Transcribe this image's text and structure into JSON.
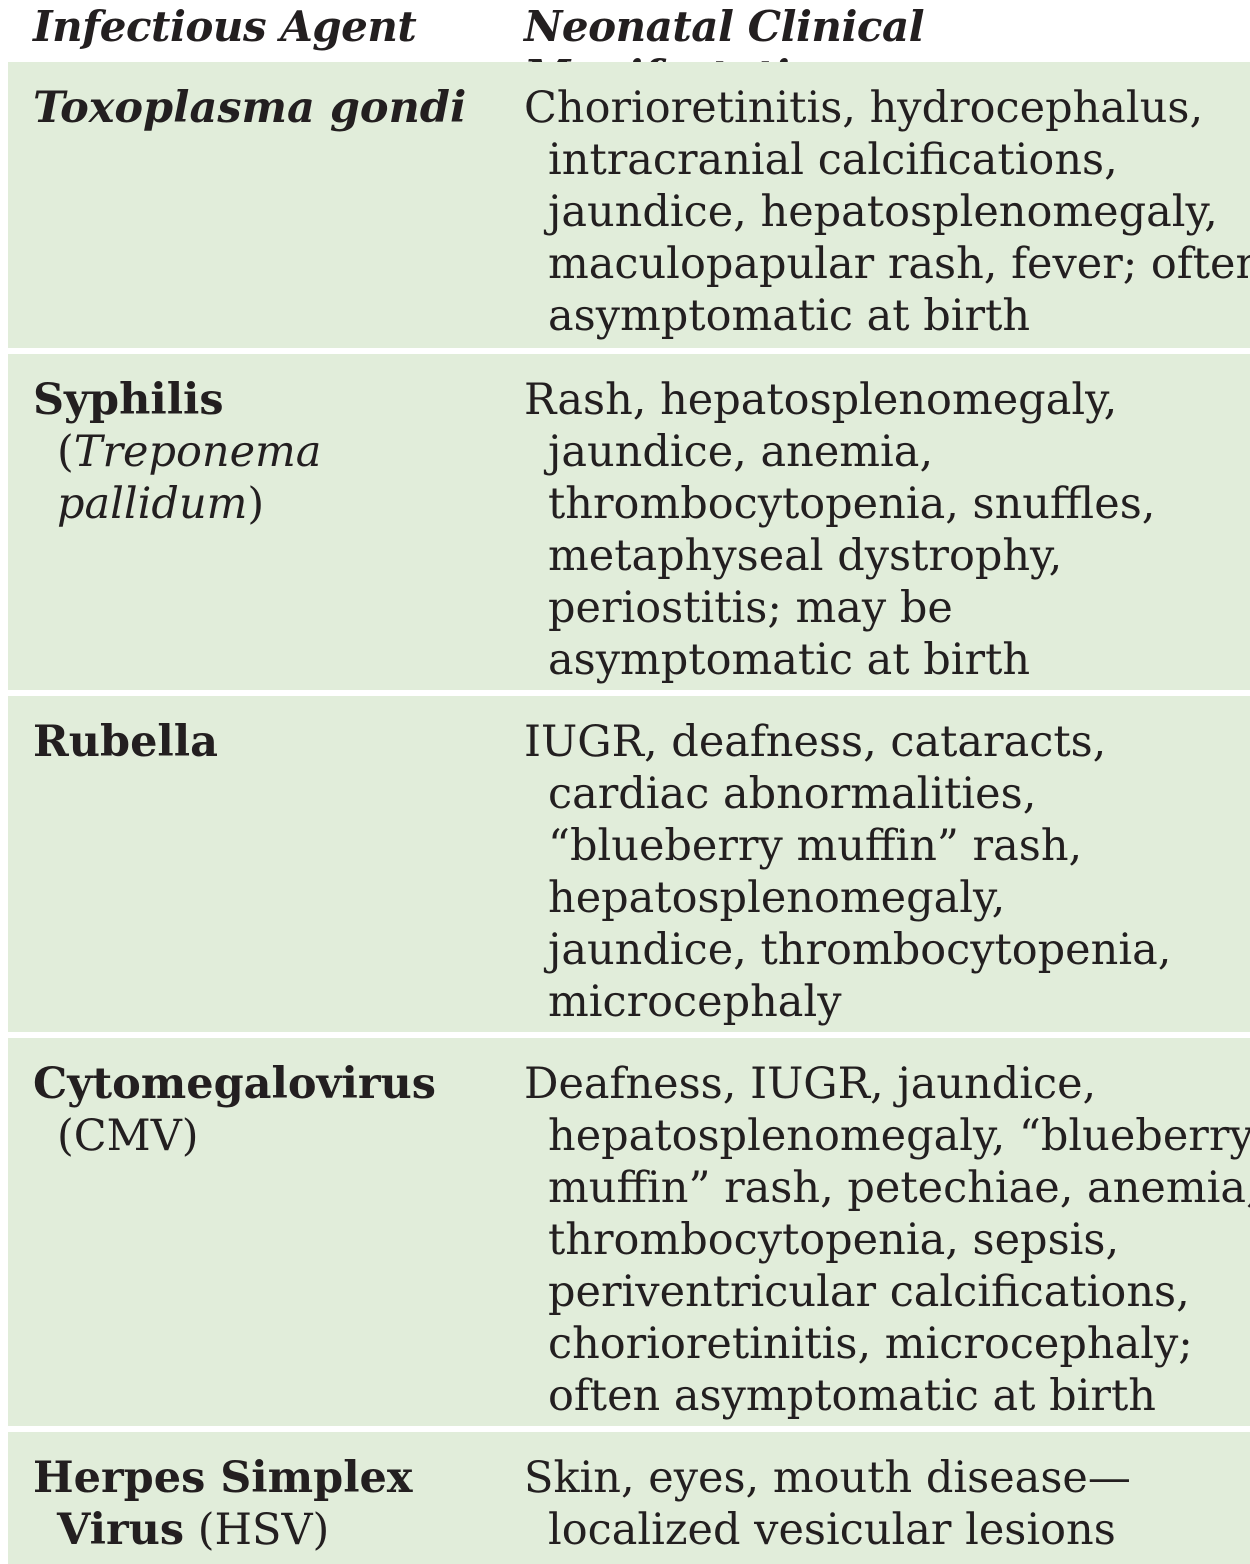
{
  "header": {
    "agent": "Infectious Agent",
    "manifestations": "Neonatal Clinical Manifestations"
  },
  "rows": [
    {
      "agent_name": "Toxoplasma gondi",
      "manifestation_lines": [
        "Chorioretinitis, hydrocephalus,",
        "intracranial calcifications,",
        "jaundice, hepatosplenomegaly,",
        "maculopapular rash, fever; often",
        "asymptomatic at birth"
      ]
    },
    {
      "agent_name": "Syphilis",
      "agent_sub_open": "(",
      "agent_sub_italic_1": "Treponema",
      "agent_sub_italic_2": "pallidum",
      "agent_sub_close": ")",
      "manifestation_lines": [
        "Rash, hepatosplenomegaly,",
        "jaundice, anemia,",
        "thrombocytopenia, snuffles,",
        "metaphyseal dystrophy,",
        "periostitis; may be",
        "asymptomatic at birth"
      ]
    },
    {
      "agent_name": "Rubella",
      "manifestation_lines": [
        "IUGR, deafness, cataracts,",
        "cardiac abnormalities,",
        "“blueberry muffin” rash,",
        "hepatosplenomegaly,",
        "jaundice, thrombocytopenia,",
        "microcephaly"
      ]
    },
    {
      "agent_name": "Cytomegalovirus",
      "agent_sub": "(CMV)",
      "manifestation_lines": [
        "Deafness, IUGR, jaundice,",
        "hepatosplenomegaly, “blueberry",
        "muffin” rash, petechiae, anemia,",
        "thrombocytopenia, sepsis,",
        "periventricular calcifications,",
        "chorioretinitis, microcephaly;",
        "often asymptomatic at birth"
      ]
    },
    {
      "agent_name_1": "Herpes Simplex",
      "agent_name_2": "Virus",
      "agent_sub": " (HSV)",
      "manifestation_lines": [
        "Skin, eyes, mouth disease—",
        "localized vesicular lesions"
      ]
    }
  ]
}
